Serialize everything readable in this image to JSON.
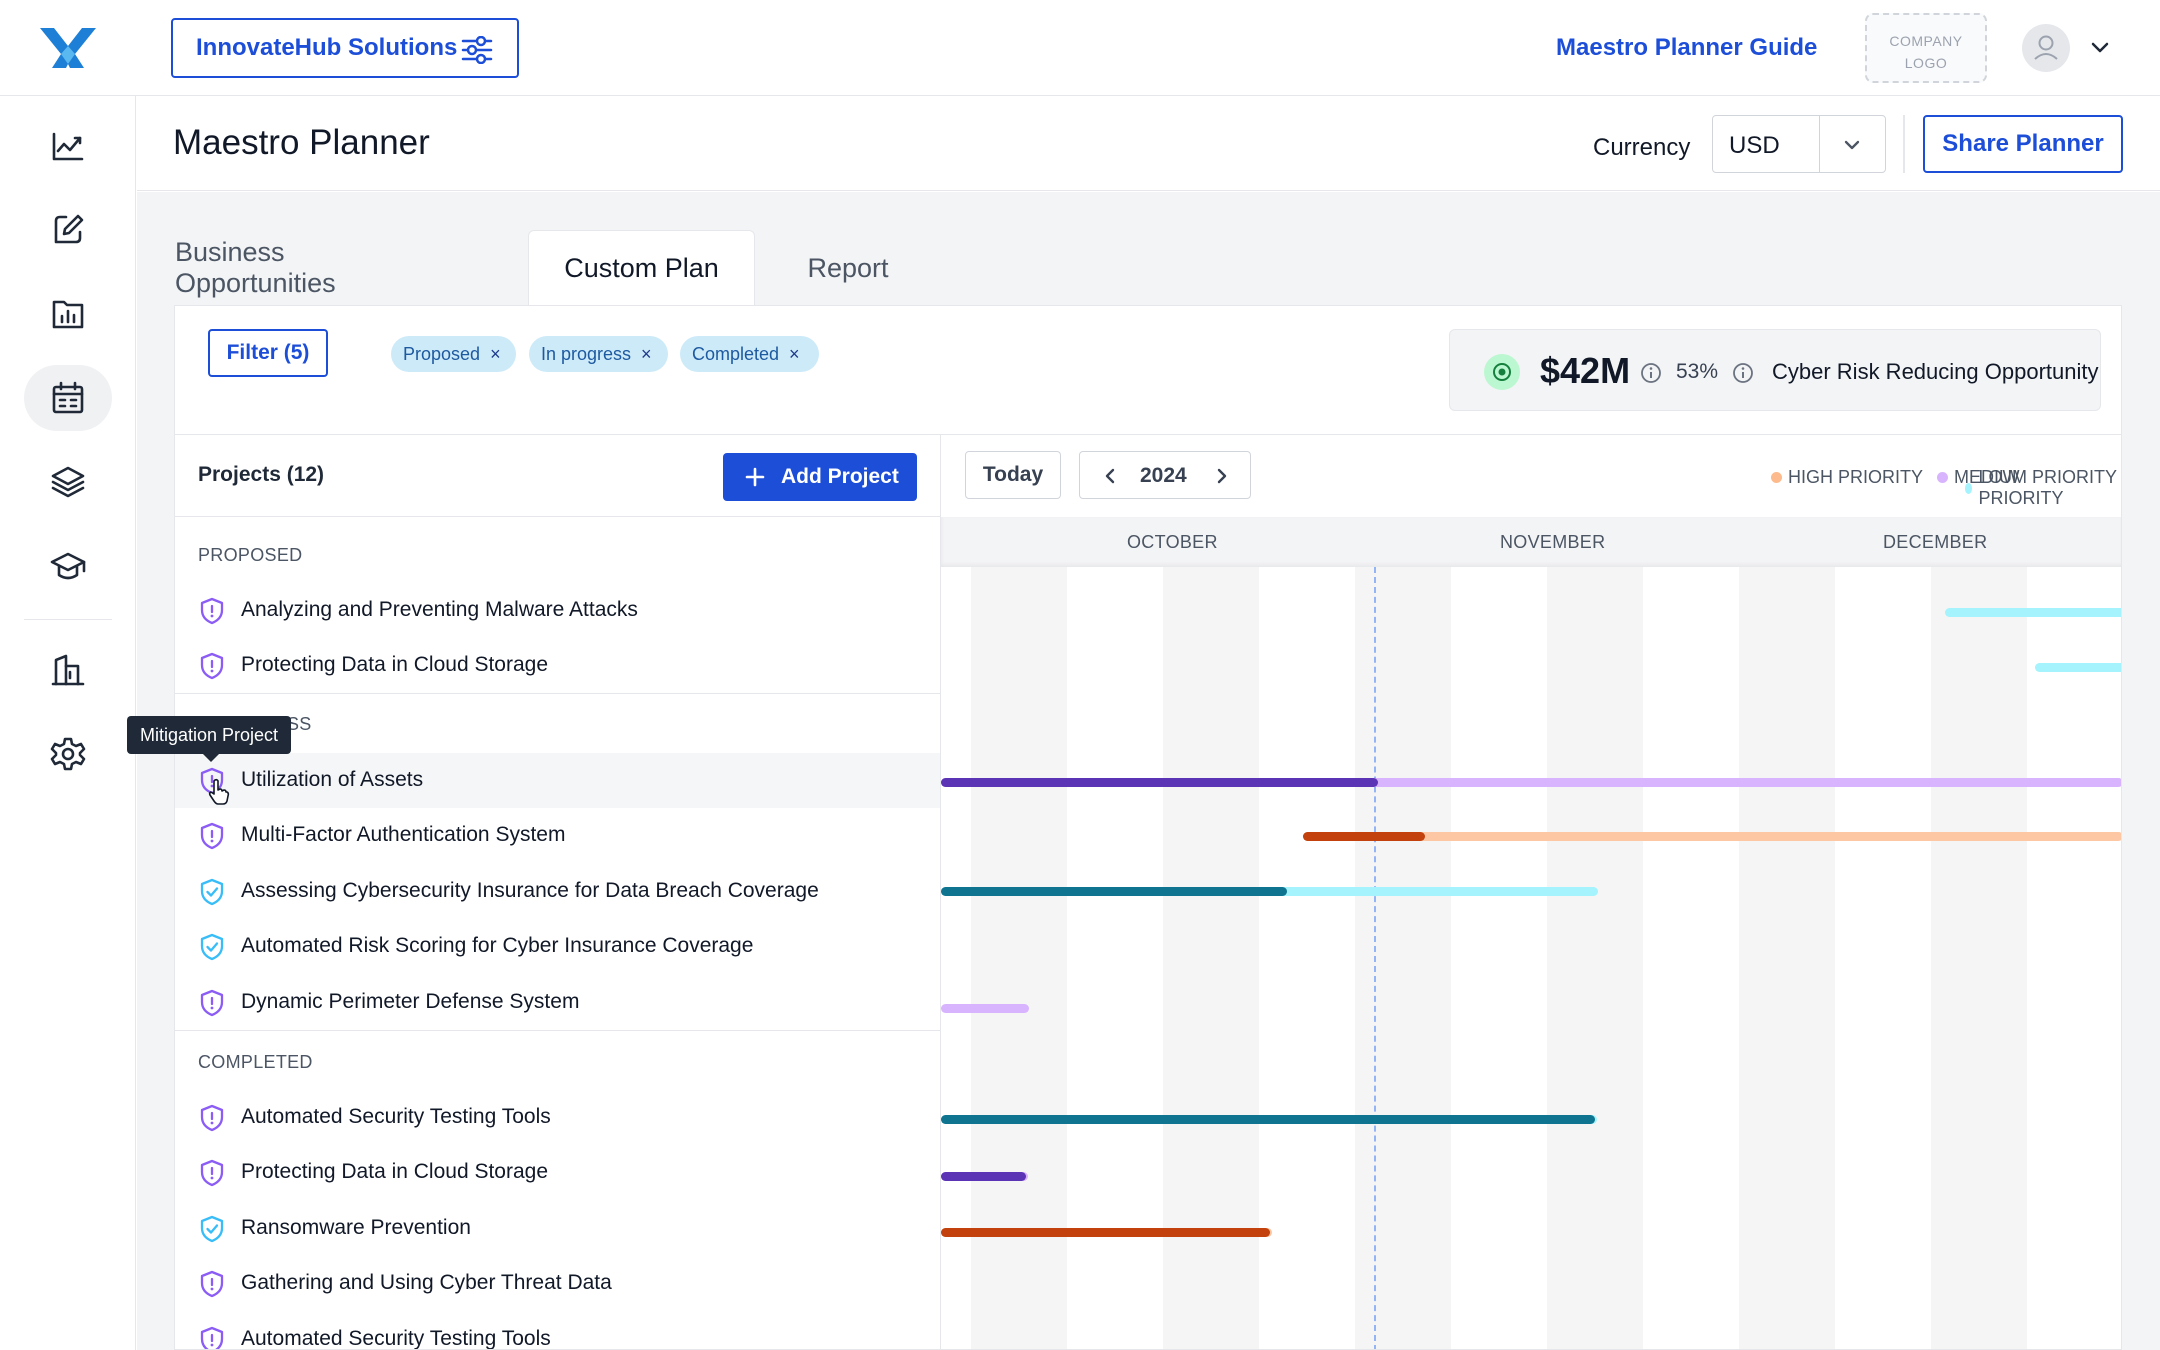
{
  "topbar": {
    "org_name": "InnovateHub Solutions",
    "guide_link": "Maestro Planner Guide",
    "company_logo_line1": "COMPANY",
    "company_logo_line2": "LOGO"
  },
  "rail": {
    "items": [
      "dashboard-icon",
      "edit-document-icon",
      "reports-folder-icon",
      "calendar-icon",
      "layers-icon",
      "education-icon",
      "buildings-icon",
      "settings-icon"
    ],
    "active": "calendar-icon"
  },
  "header": {
    "title": "Maestro Planner",
    "currency_label": "Currency",
    "currency_value": "USD",
    "share_label": "Share Planner"
  },
  "tabs": [
    {
      "label": "Business Opportunities",
      "active": false
    },
    {
      "label": "Custom Plan",
      "active": true
    },
    {
      "label": "Report",
      "active": false
    }
  ],
  "filters": {
    "button_label": "Filter (5)",
    "chips": [
      "Proposed",
      "In progress",
      "Completed"
    ],
    "chip_close": "×"
  },
  "summary": {
    "amount": "$42M",
    "percent": "53%",
    "label": "Cyber Risk Reducing Opportunity"
  },
  "projects": {
    "header": "Projects (12)",
    "add_label": "Add Project",
    "groups": [
      {
        "label": "PROPOSED",
        "items": [
          {
            "name": "Analyzing and Preventing Malware Attacks",
            "icon": "shield-alert-icon"
          },
          {
            "name": "Protecting Data in Cloud Storage",
            "icon": "shield-alert-icon"
          }
        ]
      },
      {
        "label": "IN PROGRESS",
        "visible_label": "SS",
        "items": [
          {
            "name": "Utilization of Assets",
            "icon": "shield-alert-icon"
          },
          {
            "name": "Multi-Factor Authentication System",
            "icon": "shield-alert-icon"
          },
          {
            "name": "Assessing Cybersecurity Insurance for Data Breach Coverage",
            "icon": "shield-check-icon"
          },
          {
            "name": "Automated Risk Scoring for Cyber Insurance Coverage",
            "icon": "shield-check-icon"
          },
          {
            "name": "Dynamic Perimeter Defense System",
            "icon": "shield-alert-icon"
          }
        ]
      },
      {
        "label": "COMPLETED",
        "items": [
          {
            "name": "Automated Security Testing Tools",
            "icon": "shield-alert-icon"
          },
          {
            "name": "Protecting Data in Cloud Storage",
            "icon": "shield-alert-icon"
          },
          {
            "name": "Ransomware Prevention",
            "icon": "shield-check-icon"
          },
          {
            "name": "Gathering and Using Cyber Threat Data",
            "icon": "shield-alert-icon"
          },
          {
            "name": "Automated Security Testing Tools",
            "icon": "shield-alert-icon"
          }
        ]
      }
    ]
  },
  "tooltip": "Mitigation Project",
  "timeline": {
    "today_label": "Today",
    "year": "2024",
    "legend": [
      {
        "label": "HIGH PRIORITY",
        "color": "#fdba8c"
      },
      {
        "label": "MEDIUM PRIORITY",
        "color": "#d8b4fe"
      },
      {
        "label": "LOW PRIORITY",
        "color": "#a5f3fc"
      }
    ],
    "months": [
      "OCTOBER",
      "NOVEMBER",
      "DECEMBER"
    ]
  },
  "colors": {
    "accent": "#1d4ed8",
    "purple_icon": "#8b5cf6",
    "blue_icon": "#38bdf8",
    "purple_bar": "#d8b4fe",
    "purple_progress": "#5b34b5",
    "orange_bar": "#fdc7a4",
    "orange_progress": "#c2410c",
    "cyan_bar": "#a5f3fc",
    "cyan_progress": "#0e7490"
  }
}
